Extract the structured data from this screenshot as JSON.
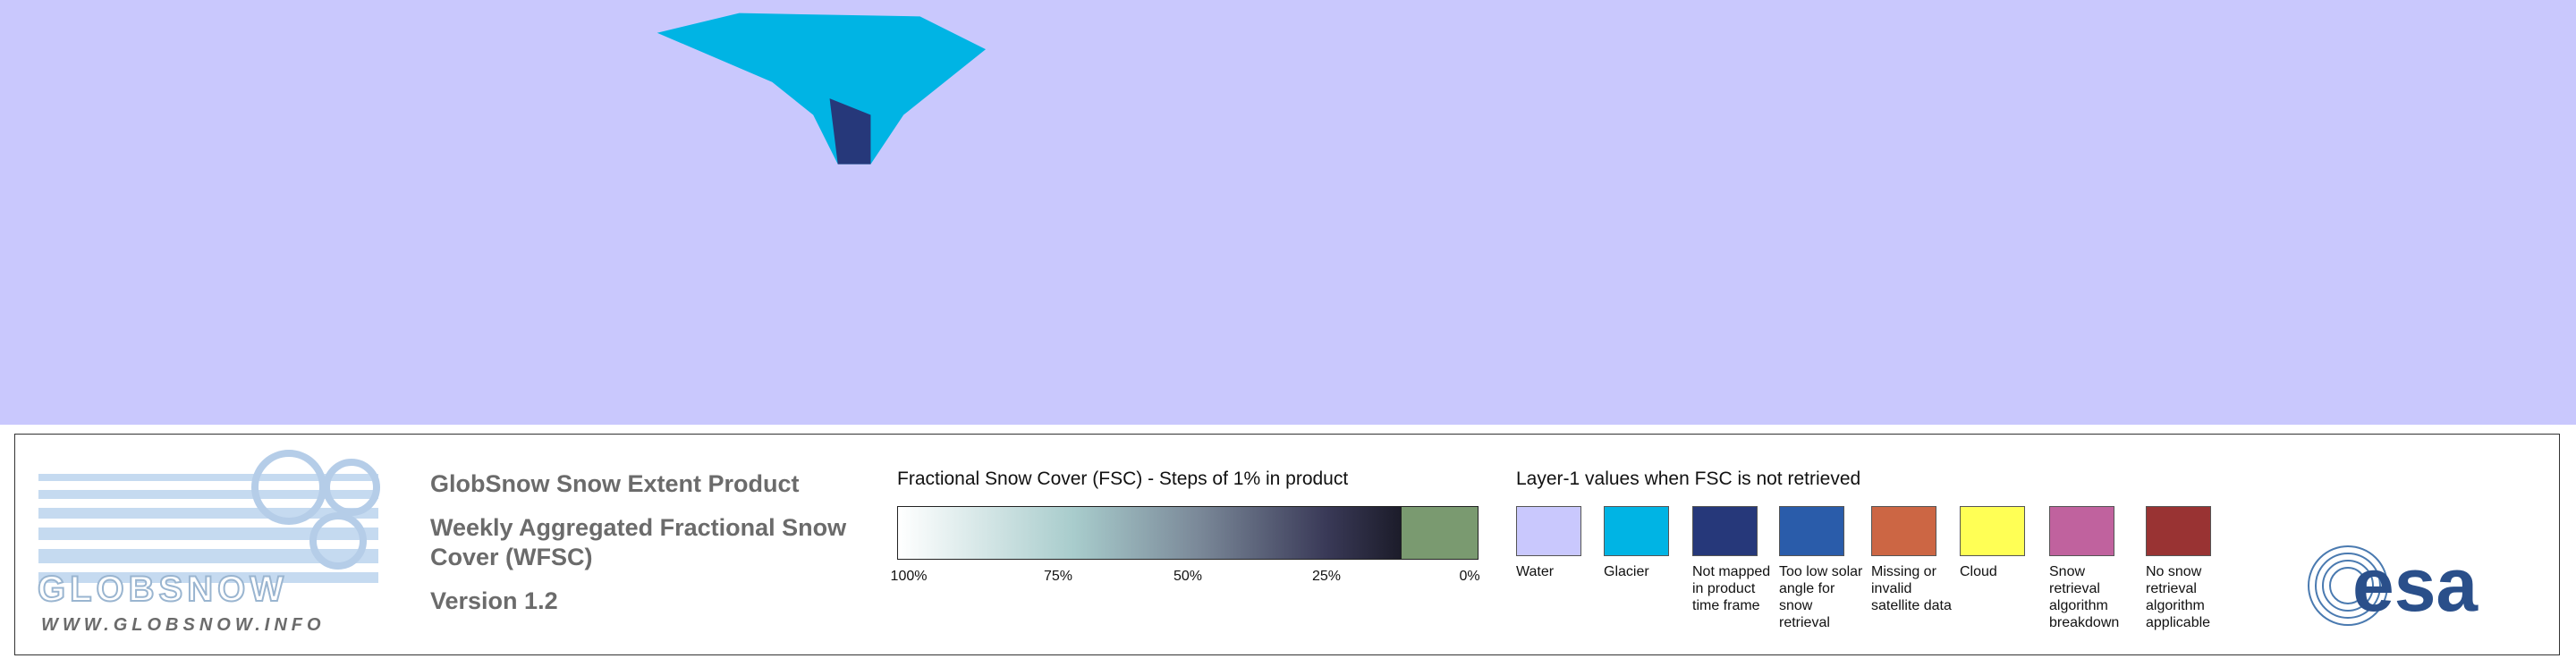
{
  "logo": {
    "name": "GLOBSNOW",
    "url": "WWW.GLOBSNOW.INFO"
  },
  "header": {
    "product": "GlobSnow Snow Extent Product",
    "subtitle": "Weekly Aggregated Fractional Snow Cover (WFSC)",
    "version": "Version 1.2"
  },
  "fsc_legend": {
    "title": "Fractional Snow Cover (FSC) - Steps of 1% in product",
    "labels": [
      "100%",
      "75%",
      "50%",
      "25%",
      "0%"
    ]
  },
  "layer1_legend": {
    "title": "Layer-1 values when FSC is not retrieved",
    "classes": [
      {
        "label": "Water",
        "color": "#c9c8fd"
      },
      {
        "label": "Glacier",
        "color": "#00b4e4"
      },
      {
        "label": "Not mapped in product time frame",
        "color": "#26387a"
      },
      {
        "label": "Too low solar angle for snow retrieval",
        "color": "#2a5caa"
      },
      {
        "label": "Missing or invalid satellite data",
        "color": "#cc6644"
      },
      {
        "label": "Cloud",
        "color": "#ffff55"
      },
      {
        "label": "Snow retrieval algorithm breakdown",
        "color": "#c0629e"
      },
      {
        "label": "No snow retrieval algorithm applicable",
        "color": "#993333"
      }
    ]
  },
  "esa": "esa"
}
